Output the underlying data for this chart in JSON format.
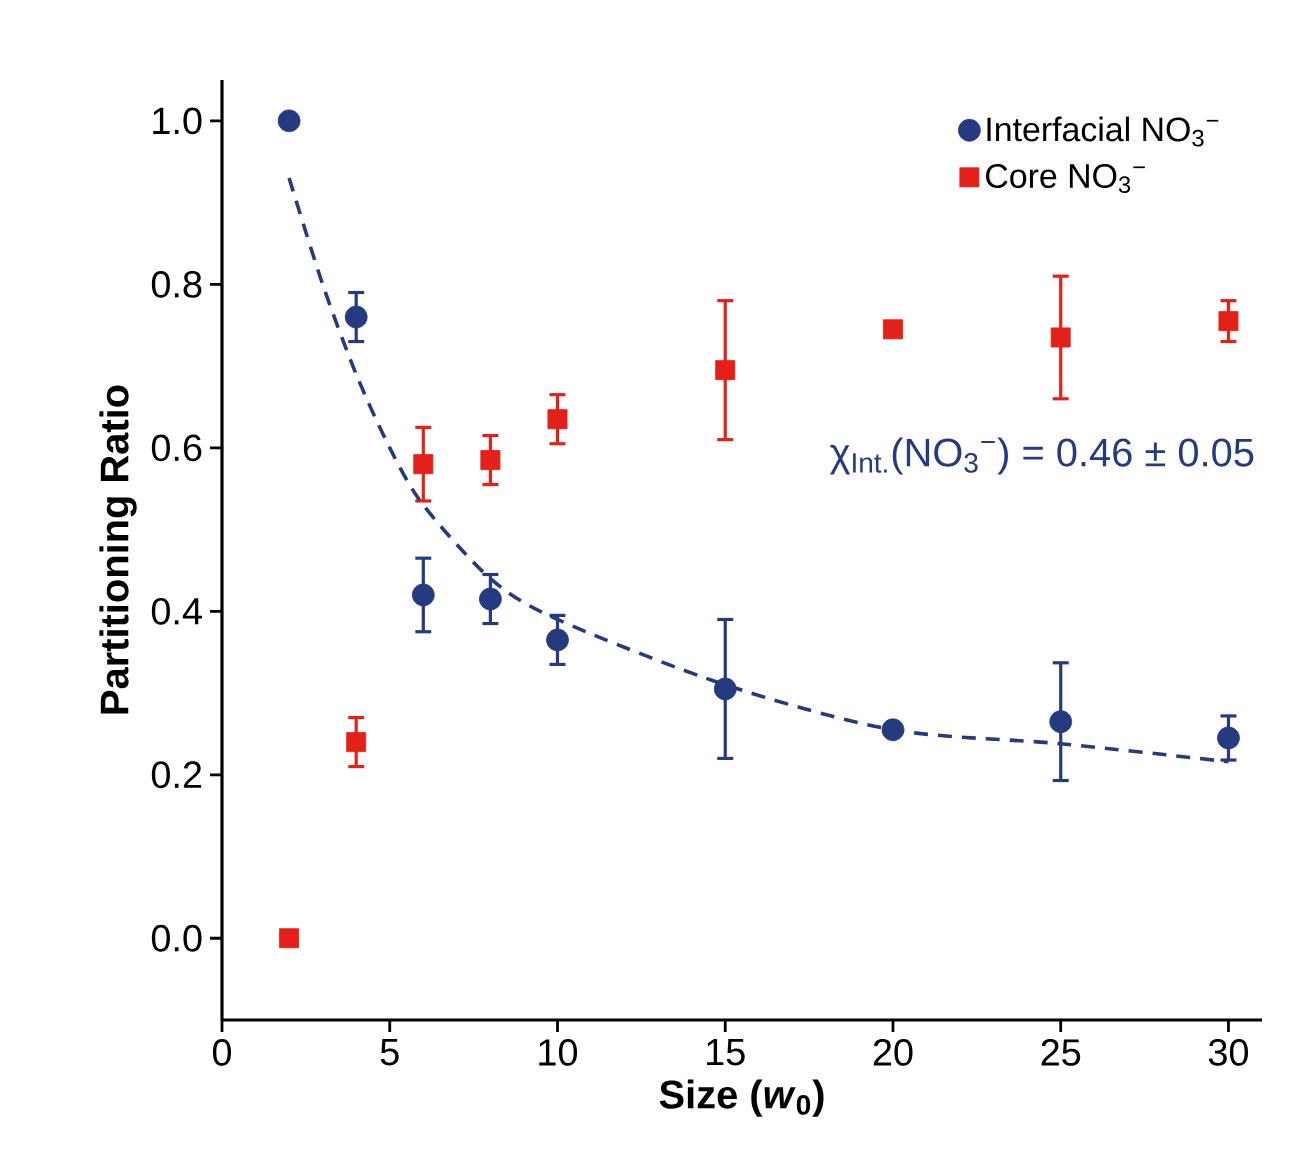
{
  "chart_data": {
    "type": "scatter",
    "xlabel": "Size (*w*$_{0}$)",
    "ylabel": "Partitioning Ratio",
    "xlim": [
      0,
      31
    ],
    "ylim": [
      -0.1,
      1.05
    ],
    "xticks": [
      0,
      5,
      10,
      15,
      20,
      25,
      30
    ],
    "yticks": [
      {
        "value": 0,
        "label": "0.0"
      },
      0.2,
      0.4,
      0.6,
      0.8,
      {
        "value": 1,
        "label": "1.0"
      }
    ],
    "grid": false,
    "legend": "top right",
    "annotations": [
      "χ$_{Int.}$(NO$_{3}$$^{−}$) = 0.46 ± 0.05"
    ],
    "series": [
      {
        "name": "Interfacial NO$_{3}$$^{−}$",
        "color": "#253a7f",
        "marker": "circle",
        "x": [
          2,
          4,
          6,
          8,
          10,
          15,
          20,
          25,
          30
        ],
        "values": [
          1.0,
          0.76,
          0.42,
          0.415,
          0.365,
          0.305,
          0.255,
          0.265,
          0.245
        ],
        "errors": [
          null,
          0.03,
          0.045,
          0.03,
          0.03,
          0.085,
          null,
          0.072,
          0.027
        ]
      },
      {
        "name": "Core NO$_{3}$$^{−}$",
        "color": "#e32119",
        "marker": "square",
        "x": [
          2,
          4,
          6,
          8,
          10,
          15,
          20,
          25,
          30
        ],
        "values": [
          0.0,
          0.24,
          0.58,
          0.585,
          0.635,
          0.695,
          0.745,
          0.735,
          0.755
        ],
        "errors": [
          null,
          0.03,
          0.045,
          0.03,
          0.03,
          0.085,
          null,
          0.075,
          0.025
        ]
      },
      {
        "type": "line",
        "line_style": "dashed",
        "marker": "none",
        "color": "#253a7f",
        "x": [
          2,
          3,
          4,
          5,
          6,
          8,
          10,
          15,
          20,
          25,
          30
        ],
        "values": [
          0.93,
          0.8,
          0.69,
          0.6,
          0.53,
          0.44,
          0.39,
          0.31,
          0.255,
          0.238,
          0.216
        ]
      }
    ]
  }
}
